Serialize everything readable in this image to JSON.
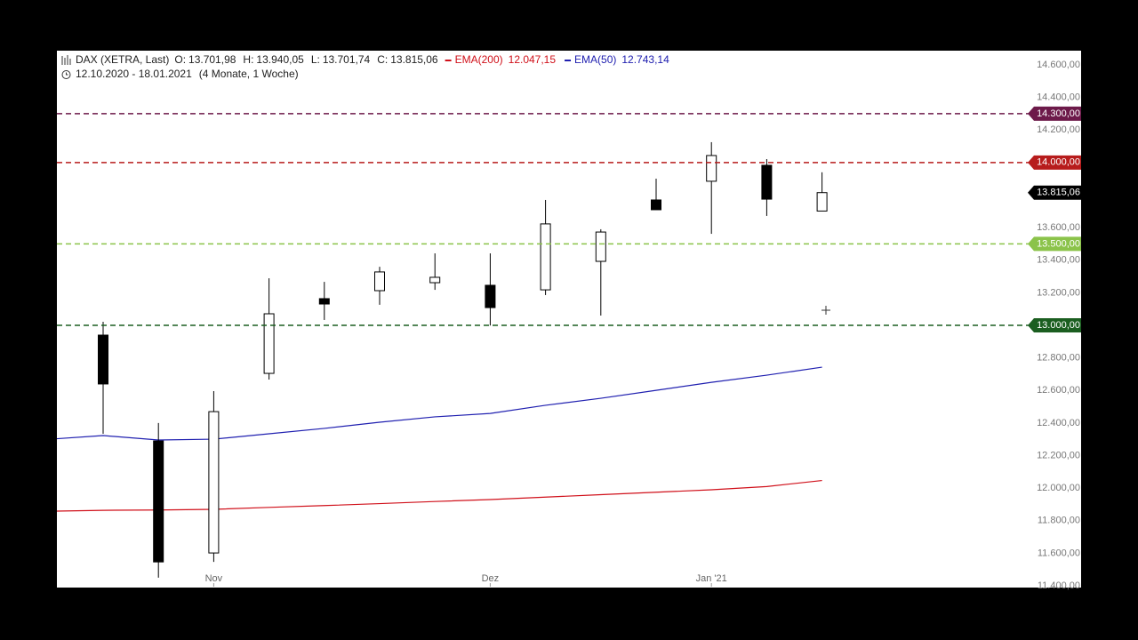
{
  "header": {
    "symbol": "DAX (XETRA, Last)",
    "ohlc": [
      {
        "label": "O:",
        "value": "13.701,98"
      },
      {
        "label": "H:",
        "value": "13.940,05"
      },
      {
        "label": "L:",
        "value": "13.701,74"
      },
      {
        "label": "C:",
        "value": "13.815,06"
      }
    ],
    "range": "12.10.2020 - 18.01.2021",
    "period": "(4 Monate, 1 Woche)"
  },
  "chart_data": {
    "type": "candlestick",
    "categories": [
      null,
      null,
      null,
      "Nov",
      null,
      null,
      null,
      null,
      "Dez",
      null,
      null,
      null,
      "Jan '21",
      null,
      null
    ],
    "open": [
      null,
      12940,
      12290,
      11602,
      12705,
      13164,
      13213,
      13262,
      13246,
      13218,
      13393,
      13770,
      13885,
      13983,
      13701.98
    ],
    "high": [
      null,
      13022,
      12400,
      12596,
      13289,
      13267,
      13360,
      13442,
      13442,
      13770,
      13590,
      13901,
      14125,
      14021,
      13940.05
    ],
    "low": [
      null,
      12334,
      11450,
      11547,
      12667,
      13033,
      13126,
      13218,
      12999,
      13186,
      13060,
      13710,
      13562,
      13672,
      13701.74
    ],
    "close": [
      null,
      12640,
      11547,
      12470,
      13071,
      13131,
      13328,
      13295,
      13109,
      13623,
      13573,
      13710,
      14043,
      13775,
      13815.06
    ],
    "series": [
      {
        "name": "EMA(200)",
        "color": "#d0101a",
        "last_label": "12.047,15",
        "values": [
          11858,
          11864,
          11866,
          11870,
          11882,
          11893,
          11905,
          11918,
          11930,
          11945,
          11960,
          11975,
          11990,
          12010,
          12047.15
        ]
      },
      {
        "name": "EMA(50)",
        "color": "#2020b0",
        "last_label": "12.743,14",
        "values": [
          12300,
          12323,
          12296,
          12301,
          12334,
          12367,
          12405,
          12438,
          12459,
          12509,
          12552,
          12601,
          12650,
          12694,
          12743.14
        ]
      }
    ],
    "levels": [
      {
        "value": 14300,
        "label": "14.300,00",
        "color": "#6d1a4a"
      },
      {
        "value": 14000,
        "label": "14.000,00",
        "color": "#b71c1c"
      },
      {
        "value": 13500,
        "label": "13.500,00",
        "color": "#8bc34a"
      },
      {
        "value": 13000,
        "label": "13.000,00",
        "color": "#1b5e20"
      }
    ],
    "last": {
      "value": 13815.06,
      "label": "13.815,06"
    },
    "ylim": [
      11395,
      14687
    ],
    "yticks": [
      {
        "value": 11400,
        "label": "11.400,00"
      },
      {
        "value": 11600,
        "label": "11.600,00"
      },
      {
        "value": 11800,
        "label": "11.800,00"
      },
      {
        "value": 12000,
        "label": "12.000,00"
      },
      {
        "value": 12200,
        "label": "12.200,00"
      },
      {
        "value": 12400,
        "label": "12.400,00"
      },
      {
        "value": 12600,
        "label": "12.600,00"
      },
      {
        "value": 12800,
        "label": "12.800,00"
      },
      {
        "value": 13200,
        "label": "13.200,00"
      },
      {
        "value": 13400,
        "label": "13.400,00"
      },
      {
        "value": 13600,
        "label": "13.600,00"
      },
      {
        "value": 14200,
        "label": "14.200,00"
      },
      {
        "value": 14400,
        "label": "14.400,00"
      },
      {
        "value": 14600,
        "label": "14.600,00"
      }
    ]
  }
}
